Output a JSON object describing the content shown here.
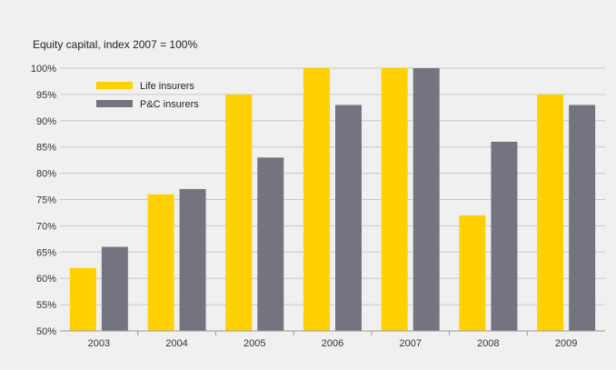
{
  "chart_data": {
    "type": "bar",
    "title": "Equity capital, index 2007 = 100%",
    "categories": [
      "2003",
      "2004",
      "2005",
      "2006",
      "2007",
      "2008",
      "2009"
    ],
    "series": [
      {
        "name": "Life insurers",
        "color": "#ffd100",
        "values": [
          62,
          76,
          95,
          100,
          100,
          72,
          95
        ]
      },
      {
        "name": "P&C insurers",
        "color": "#747480",
        "values": [
          66,
          77,
          83,
          93,
          100,
          86,
          93
        ]
      }
    ],
    "ylim": [
      50,
      100
    ],
    "y_ticks": [
      "50%",
      "55%",
      "60%",
      "65%",
      "70%",
      "75%",
      "80%",
      "85%",
      "90%",
      "95%",
      "100%"
    ],
    "grid": true,
    "legend_position": "top-left"
  }
}
